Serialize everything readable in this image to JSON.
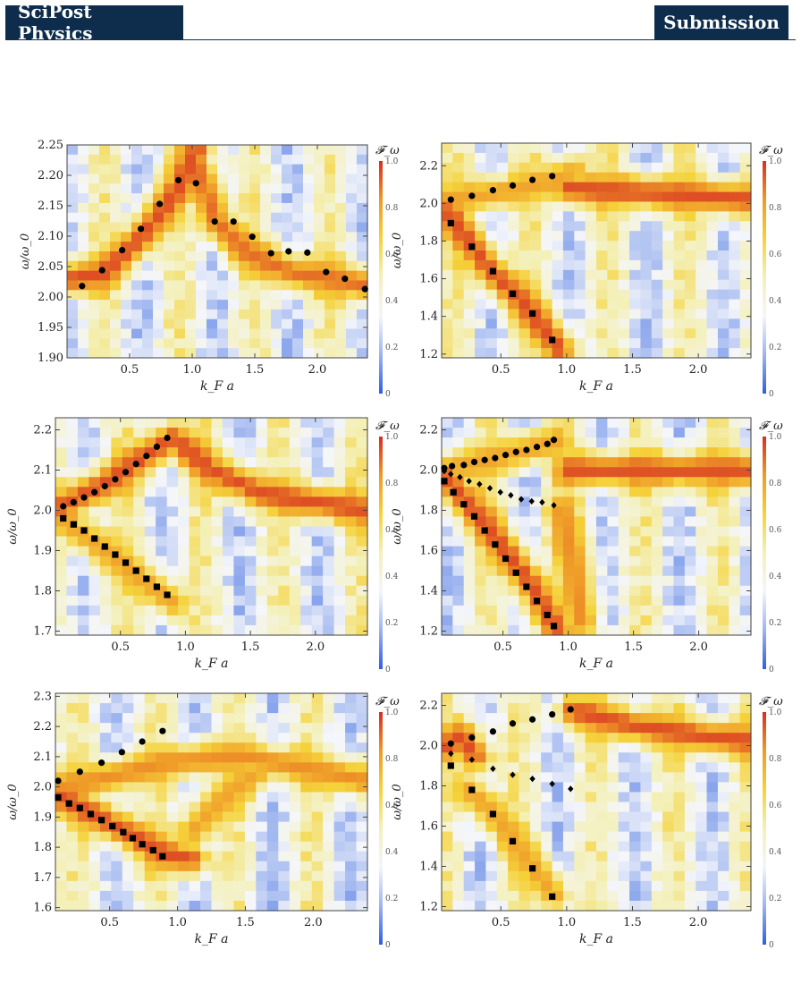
{
  "header": {
    "journal": "SciPost Physics",
    "section": "Submission"
  },
  "colors": {
    "header_bg": "#0e2d4d",
    "header_text": "#ffffff",
    "colormap": [
      "#2f5ee0",
      "#9db4ef",
      "#f4f6fb",
      "#f4f0b8",
      "#f5d23a",
      "#ef9a28",
      "#d62e22"
    ]
  },
  "colorbar": {
    "label": "𝓕_ω",
    "ticks": [
      "0",
      "0.2",
      "0.4",
      "0.6",
      "0.8",
      "1.0"
    ]
  },
  "chart_data": [
    {
      "type": "heatmap",
      "panel": "top-left",
      "xlabel": "k_F a",
      "ylabel": "ω/ω_0",
      "xlim": [
        0.0,
        2.4
      ],
      "ylim": [
        1.9,
        2.25
      ],
      "xticks": [
        "0.5",
        "1.0",
        "1.5",
        "2.0"
      ],
      "yticks": [
        "1.90",
        "1.95",
        "2.00",
        "2.05",
        "2.10",
        "2.15",
        "2.20",
        "2.25"
      ],
      "colorbar": {
        "label": "𝓕_ω",
        "range": [
          0,
          1
        ]
      },
      "heatmap_ridges": [
        {
          "points": [
            [
              0.05,
              2.03
            ],
            [
              0.3,
              2.04
            ],
            [
              0.6,
              2.1
            ],
            [
              0.9,
              2.18
            ],
            [
              1.05,
              2.25
            ]
          ],
          "value": 0.95
        },
        {
          "points": [
            [
              1.05,
              2.21
            ],
            [
              1.2,
              2.12
            ],
            [
              1.45,
              2.07
            ],
            [
              1.8,
              2.04
            ],
            [
              2.4,
              2.02
            ]
          ],
          "value": 0.9
        }
      ],
      "series": [
        {
          "marker": "circle",
          "x": [
            0.12,
            0.28,
            0.44,
            0.59,
            0.74,
            0.89,
            1.03,
            1.18,
            1.33,
            1.48,
            1.63,
            1.77,
            1.92,
            2.07,
            2.22,
            2.38
          ],
          "y": [
            2.018,
            2.044,
            2.077,
            2.112,
            2.153,
            2.192,
            2.187,
            2.124,
            2.124,
            2.099,
            2.072,
            2.075,
            2.073,
            2.041,
            2.03,
            2.013
          ]
        }
      ]
    },
    {
      "type": "heatmap",
      "panel": "top-right",
      "xlabel": "k_F a",
      "ylabel": "ω/ω_0",
      "xlim": [
        0.05,
        2.4
      ],
      "ylim": [
        1.18,
        2.32
      ],
      "xticks": [
        "0.5",
        "1.0",
        "1.5",
        "2.0"
      ],
      "yticks": [
        "1.2",
        "1.4",
        "1.6",
        "1.8",
        "2.0",
        "2.2"
      ],
      "colorbar": {
        "label": "𝓕_ω",
        "range": [
          0,
          1
        ]
      },
      "heatmap_ridges": [
        {
          "points": [
            [
              0.1,
              2.02
            ],
            [
              0.5,
              2.06
            ],
            [
              0.9,
              2.12
            ],
            [
              1.05,
              2.17
            ]
          ],
          "value": 0.8
        },
        {
          "points": [
            [
              0.1,
              1.95
            ],
            [
              0.4,
              1.66
            ],
            [
              0.7,
              1.45
            ],
            [
              0.95,
              1.22
            ]
          ],
          "value": 0.95
        },
        {
          "points": [
            [
              1.0,
              2.08
            ],
            [
              1.5,
              2.06
            ],
            [
              2.0,
              2.04
            ],
            [
              2.4,
              2.02
            ]
          ],
          "value": 0.95
        }
      ],
      "series": [
        {
          "marker": "circle",
          "x": [
            0.12,
            0.28,
            0.44,
            0.59,
            0.74,
            0.89
          ],
          "y": [
            2.02,
            2.04,
            2.07,
            2.095,
            2.125,
            2.145
          ]
        },
        {
          "marker": "square",
          "x": [
            0.12,
            0.28,
            0.44,
            0.59,
            0.74,
            0.89
          ],
          "y": [
            1.895,
            1.77,
            1.64,
            1.52,
            1.415,
            1.275
          ]
        }
      ]
    },
    {
      "type": "heatmap",
      "panel": "middle-left",
      "xlabel": "k_F a",
      "ylabel": "ω/ω_0",
      "xlim": [
        0.0,
        2.4
      ],
      "ylim": [
        1.69,
        2.23
      ],
      "xticks": [
        "0.5",
        "1.0",
        "1.5",
        "2.0"
      ],
      "yticks": [
        "1.7",
        "1.8",
        "1.9",
        "2.0",
        "2.1",
        "2.2"
      ],
      "colorbar": {
        "label": "𝓕_ω",
        "range": [
          0,
          1
        ]
      },
      "heatmap_ridges": [
        {
          "points": [
            [
              0.05,
              2.01
            ],
            [
              0.4,
              2.07
            ],
            [
              0.9,
              2.18
            ],
            [
              1.2,
              2.1
            ],
            [
              1.6,
              2.04
            ],
            [
              2.4,
              2.0
            ]
          ],
          "value": 0.95
        },
        {
          "points": [
            [
              0.05,
              1.98
            ],
            [
              0.5,
              1.87
            ],
            [
              0.9,
              1.77
            ]
          ],
          "value": 0.8
        }
      ],
      "series": [
        {
          "marker": "circle",
          "x": [
            0.06,
            0.14,
            0.22,
            0.3,
            0.38,
            0.46,
            0.54,
            0.62,
            0.7,
            0.78,
            0.86
          ],
          "y": [
            2.01,
            2.02,
            2.032,
            2.045,
            2.06,
            2.077,
            2.095,
            2.115,
            2.135,
            2.158,
            2.18
          ]
        },
        {
          "marker": "square",
          "x": [
            0.06,
            0.14,
            0.22,
            0.3,
            0.38,
            0.46,
            0.54,
            0.62,
            0.7,
            0.78,
            0.86
          ],
          "y": [
            1.98,
            1.965,
            1.95,
            1.93,
            1.91,
            1.89,
            1.87,
            1.85,
            1.83,
            1.81,
            1.79
          ]
        }
      ]
    },
    {
      "type": "heatmap",
      "panel": "middle-right",
      "xlabel": "k_F a",
      "ylabel": "ω/ω_0",
      "xlim": [
        0.03,
        2.4
      ],
      "ylim": [
        1.18,
        2.26
      ],
      "xticks": [
        "0.5",
        "1.0",
        "1.5",
        "2.0"
      ],
      "yticks": [
        "1.2",
        "1.4",
        "1.6",
        "1.8",
        "2.0",
        "2.2"
      ],
      "colorbar": {
        "label": "𝓕_ω",
        "range": [
          0,
          1
        ]
      },
      "heatmap_ridges": [
        {
          "points": [
            [
              0.05,
              2.0
            ],
            [
              0.5,
              2.07
            ],
            [
              0.9,
              2.14
            ]
          ],
          "value": 0.8
        },
        {
          "points": [
            [
              0.05,
              1.97
            ],
            [
              0.4,
              1.7
            ],
            [
              0.7,
              1.45
            ],
            [
              0.9,
              1.22
            ]
          ],
          "value": 0.95
        },
        {
          "points": [
            [
              0.95,
              1.8
            ],
            [
              1.05,
              1.5
            ],
            [
              1.1,
              1.25
            ]
          ],
          "value": 0.85
        },
        {
          "points": [
            [
              1.0,
              2.0
            ],
            [
              1.5,
              2.0
            ],
            [
              2.4,
              2.0
            ]
          ],
          "value": 0.95
        }
      ],
      "series": [
        {
          "marker": "circle",
          "x": [
            0.05,
            0.11,
            0.2,
            0.28,
            0.36,
            0.44,
            0.52,
            0.6,
            0.68,
            0.76,
            0.84,
            0.89
          ],
          "y": [
            2.01,
            2.02,
            2.025,
            2.04,
            2.05,
            2.06,
            2.075,
            2.09,
            2.1,
            2.115,
            2.13,
            2.15
          ]
        },
        {
          "marker": "diamond",
          "x": [
            0.05,
            0.1,
            0.17,
            0.24,
            0.32,
            0.4,
            0.48,
            0.56,
            0.64,
            0.72,
            0.8,
            0.89
          ],
          "y": [
            1.995,
            1.98,
            1.965,
            1.945,
            1.93,
            1.91,
            1.89,
            1.875,
            1.855,
            1.845,
            1.84,
            1.825
          ]
        },
        {
          "marker": "square",
          "x": [
            0.05,
            0.12,
            0.2,
            0.28,
            0.36,
            0.44,
            0.52,
            0.6,
            0.68,
            0.76,
            0.84,
            0.89
          ],
          "y": [
            1.945,
            1.89,
            1.83,
            1.77,
            1.7,
            1.63,
            1.56,
            1.49,
            1.42,
            1.35,
            1.28,
            1.225
          ]
        }
      ]
    },
    {
      "type": "heatmap",
      "panel": "bottom-left",
      "xlabel": "k_F a",
      "ylabel": "ω/ω_0",
      "xlim": [
        0.1,
        2.4
      ],
      "ylim": [
        1.59,
        2.31
      ],
      "xticks": [
        "0.5",
        "1.0",
        "1.5",
        "2.0"
      ],
      "yticks": [
        "1.6",
        "1.7",
        "1.8",
        "1.9",
        "2.0",
        "2.1",
        "2.2",
        "2.3"
      ],
      "colorbar": {
        "label": "𝓕_ω",
        "range": [
          0,
          1
        ]
      },
      "heatmap_ridges": [
        {
          "points": [
            [
              0.12,
              2.0
            ],
            [
              0.4,
              2.02
            ],
            [
              0.9,
              2.08
            ],
            [
              1.5,
              2.1
            ],
            [
              2.4,
              2.02
            ]
          ],
          "value": 0.85
        },
        {
          "points": [
            [
              0.12,
              1.97
            ],
            [
              0.5,
              1.88
            ],
            [
              0.9,
              1.78
            ],
            [
              1.1,
              1.76
            ]
          ],
          "value": 0.95
        },
        {
          "points": [
            [
              1.1,
              1.85
            ],
            [
              1.3,
              1.95
            ],
            [
              1.6,
              2.05
            ]
          ],
          "value": 0.8
        }
      ],
      "series": [
        {
          "marker": "circle",
          "x": [
            0.12,
            0.28,
            0.44,
            0.59,
            0.74,
            0.89
          ],
          "y": [
            2.02,
            2.05,
            2.08,
            2.115,
            2.15,
            2.185
          ]
        },
        {
          "marker": "square",
          "x": [
            0.12,
            0.2,
            0.28,
            0.36,
            0.44,
            0.52,
            0.6,
            0.67,
            0.74,
            0.82,
            0.89
          ],
          "y": [
            1.965,
            1.945,
            1.93,
            1.91,
            1.89,
            1.87,
            1.85,
            1.83,
            1.81,
            1.79,
            1.77
          ]
        }
      ]
    },
    {
      "type": "heatmap",
      "panel": "bottom-right",
      "xlabel": "k_F a",
      "ylabel": "ω/ω_0",
      "xlim": [
        0.05,
        2.4
      ],
      "ylim": [
        1.18,
        2.26
      ],
      "xticks": [
        "0.5",
        "1.0",
        "1.5",
        "2.0"
      ],
      "yticks": [
        "1.2",
        "1.4",
        "1.6",
        "1.8",
        "2.0",
        "2.2"
      ],
      "colorbar": {
        "label": "𝓕_ω",
        "range": [
          0,
          1
        ]
      },
      "heatmap_ridges": [
        {
          "points": [
            [
              0.1,
              2.0
            ],
            [
              0.2,
              2.05
            ],
            [
              0.3,
              1.95
            ]
          ],
          "value": 0.95
        },
        {
          "points": [
            [
              1.05,
              2.17
            ],
            [
              1.5,
              2.1
            ],
            [
              2.0,
              2.05
            ],
            [
              2.4,
              2.02
            ]
          ],
          "value": 0.95
        },
        {
          "points": [
            [
              0.25,
              1.78
            ],
            [
              0.45,
              1.66
            ],
            [
              0.6,
              1.52
            ],
            [
              0.75,
              1.39
            ],
            [
              0.9,
              1.26
            ]
          ],
          "value": 0.8
        }
      ],
      "series": [
        {
          "marker": "circle",
          "x": [
            0.12,
            0.28,
            0.44,
            0.59,
            0.74,
            0.89,
            1.03
          ],
          "y": [
            2.01,
            2.04,
            2.07,
            2.11,
            2.13,
            2.155,
            2.18
          ]
        },
        {
          "marker": "diamond",
          "x": [
            0.12,
            0.28,
            0.44,
            0.59,
            0.74,
            0.89,
            1.03
          ],
          "y": [
            1.96,
            1.93,
            1.885,
            1.855,
            1.835,
            1.81,
            1.785
          ]
        },
        {
          "marker": "square",
          "x": [
            0.12,
            0.28,
            0.44,
            0.59,
            0.74,
            0.89
          ],
          "y": [
            1.9,
            1.78,
            1.66,
            1.525,
            1.39,
            1.25
          ]
        }
      ]
    }
  ]
}
